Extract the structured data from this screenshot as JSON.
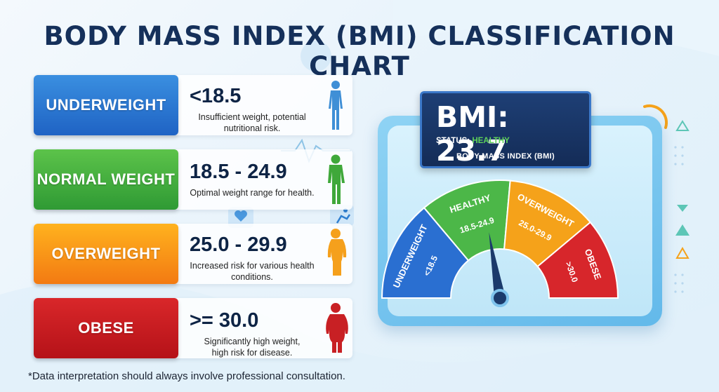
{
  "title": "BODY MASS INDEX (BMI) CLASSIFICATION CHART",
  "rows": [
    {
      "category": "UNDERWEIGHT",
      "range": "<18.5",
      "desc_line1": "Insufficient weight, potential",
      "desc_line2": "nutritional risk.",
      "color_top": "#3a8fe0",
      "color_bottom": "#1f63c4",
      "figure_color": "#3f8fd6",
      "figure": "thin-person-icon"
    },
    {
      "category": "NORMAL WEIGHT",
      "range": "18.5 - 24.9",
      "desc_line1": "Optimal weight range for health.",
      "desc_line2": "",
      "color_top": "#5cc34a",
      "color_bottom": "#2f9a34",
      "figure_color": "#3fa83a",
      "figure": "normal-person-icon"
    },
    {
      "category": "OVERWEIGHT",
      "range": "25.0 - 29.9",
      "desc_line1": "Increased risk for various health",
      "desc_line2": "conditions.",
      "color_top": "#ffb21e",
      "color_bottom": "#f37a12",
      "figure_color": "#f5a01c",
      "figure": "overweight-person-icon"
    },
    {
      "category": "OBESE",
      "range": ">= 30.0",
      "desc_line1": "Significantly high weight,",
      "desc_line2": "high risk for disease.",
      "color_top": "#d9272a",
      "color_bottom": "#b51218",
      "figure_color": "#c82024",
      "figure": "obese-person-icon"
    }
  ],
  "footnote": "*Data interpretation should always involve professional consultation.",
  "display": {
    "bmi_text": "BMI: 23.7",
    "status_label": "STATUS:",
    "status_value": "HEALTHY",
    "subtitle": "BODY MASS INDEX (BMI)"
  },
  "gauge": {
    "segments": [
      {
        "name": "UNDERWEIGHT",
        "range": "<18.5",
        "color": "#2a6fd1"
      },
      {
        "name": "HEALTHY",
        "range": "18.5-24.9",
        "color": "#4cb748"
      },
      {
        "name": "OVERWEIGHT",
        "range": "25.0-29.9",
        "color": "#f5a21a"
      },
      {
        "name": "OBESE",
        "range": ">30.0",
        "color": "#d7262b"
      }
    ],
    "needle_value": 23.7
  }
}
